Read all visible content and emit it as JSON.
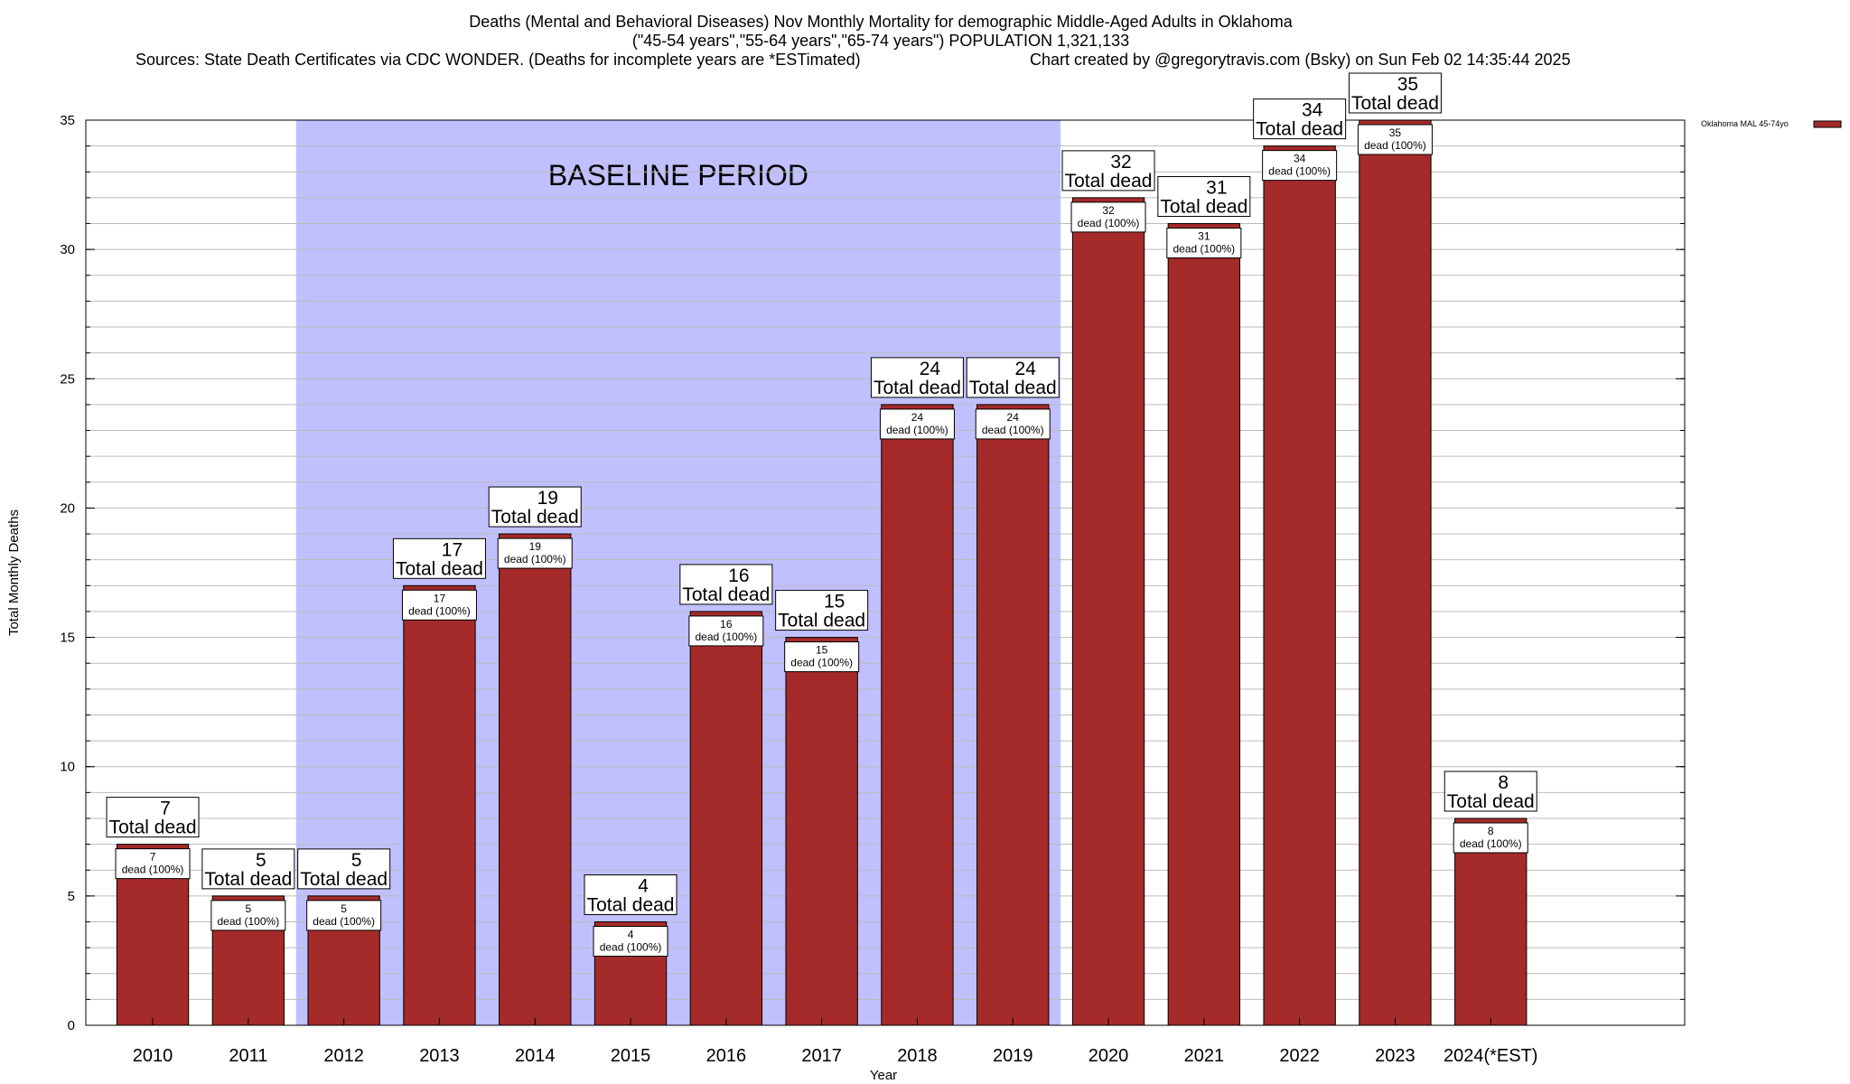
{
  "title": {
    "line1": "Deaths (Mental and Behavioral Diseases) Nov Monthly Mortality for demographic Middle-Aged Adults in Oklahoma",
    "line2": "(\"45-54 years\",\"55-64 years\",\"65-74 years\") POPULATION 1,321,133",
    "line3_left": "Sources: State Death Certificates via CDC WONDER. (Deaths for incomplete years are *ESTimated)",
    "line3_right": "Chart created by @gregorytravis.com (Bsky) on Sun Feb 02 14:35:44 2025"
  },
  "colors": {
    "bar": "#a52a2a",
    "baseline_band": "#c0c0ff",
    "grid": "#bbbbbb"
  },
  "chart_data": {
    "type": "bar",
    "xlabel": "Year",
    "ylabel": "Total Monthly Deaths",
    "ylim": [
      0,
      35
    ],
    "yticks": [
      0,
      5,
      10,
      15,
      20,
      25,
      30,
      35
    ],
    "grid": true,
    "legend_position": "top-right",
    "categories": [
      "2010",
      "2011",
      "2012",
      "2013",
      "2014",
      "2015",
      "2016",
      "2017",
      "2018",
      "2019",
      "2020",
      "2021",
      "2022",
      "2023",
      "2024(*EST)"
    ],
    "series": [
      {
        "name": "Oklahoma MAL 45-74yo",
        "values": [
          7,
          5,
          5,
          17,
          19,
          4,
          16,
          15,
          24,
          24,
          32,
          31,
          34,
          35,
          8
        ]
      }
    ],
    "top_label_suffix": "Total dead",
    "inner_label_suffix": "dead (100%)",
    "annotation": {
      "text": "BASELINE PERIOD",
      "from_category": "2012",
      "to_category": "2019"
    }
  }
}
